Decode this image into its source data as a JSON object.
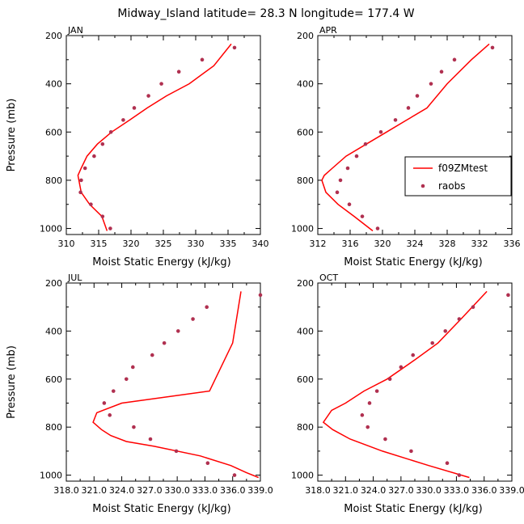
{
  "figure": {
    "title": "Midway_Island   latitude= 28.3 N longitude= 177.4 W"
  },
  "colors": {
    "model": "#ff0000",
    "obs": "#b03050",
    "axis": "#000000"
  },
  "chart_data": [
    {
      "type": "line",
      "panel": "JAN",
      "title": "JAN",
      "xlabel": "Moist Static Energy (kJ/kg)",
      "ylabel": "Pressure (mb)",
      "xlim": [
        310,
        340
      ],
      "ylim": [
        1025,
        200
      ],
      "xticks": [
        310,
        315,
        320,
        325,
        330,
        335,
        340
      ],
      "xtick_labels": [
        "310",
        "315",
        "320",
        "325",
        "330",
        "335",
        "340"
      ],
      "yticks": [
        200,
        400,
        600,
        800,
        1000
      ],
      "ytick_labels": [
        "200",
        "400",
        "600",
        "800",
        "1000"
      ],
      "series": [
        {
          "name": "f09ZMtest",
          "kind": "line",
          "x": [
            316.3,
            315.5,
            313.6,
            312.3,
            311.8,
            312.3,
            313.2,
            314.8,
            317,
            319.8,
            322.5,
            325.5,
            329,
            332.8,
            335.5
          ],
          "y": [
            1010,
            950,
            900,
            850,
            780,
            750,
            700,
            650,
            600,
            550,
            500,
            450,
            400,
            325,
            235
          ]
        },
        {
          "name": "raobs",
          "kind": "scatter",
          "x": [
            316.8,
            315.6,
            313.8,
            312.2,
            312.3,
            312.9,
            314.3,
            315.6,
            316.9,
            318.8,
            320.5,
            322.7,
            324.7,
            327.4,
            331,
            336
          ],
          "y": [
            1000,
            950,
            900,
            850,
            800,
            750,
            700,
            650,
            600,
            550,
            500,
            450,
            400,
            350,
            300,
            250
          ]
        }
      ]
    },
    {
      "type": "line",
      "panel": "APR",
      "title": "APR",
      "xlabel": "Moist Static Energy (kJ/kg)",
      "ylabel": "",
      "xlim": [
        312,
        336
      ],
      "ylim": [
        1025,
        200
      ],
      "xticks": [
        312,
        316,
        320,
        324,
        328,
        332,
        336
      ],
      "xtick_labels": [
        "312",
        "316",
        "320",
        "324",
        "328",
        "332",
        "336"
      ],
      "yticks": [
        200,
        400,
        600,
        800,
        1000
      ],
      "ytick_labels": [
        "200",
        "400",
        "600",
        "800",
        "1000"
      ],
      "legend": {
        "position": "right-middle",
        "entries": [
          "f09ZMtest",
          "raobs"
        ]
      },
      "series": [
        {
          "name": "f09ZMtest",
          "kind": "line",
          "x": [
            318.8,
            316.5,
            314.5,
            313,
            312.5,
            312.8,
            313.8,
            315.5,
            318,
            320.5,
            323,
            325.5,
            328,
            331,
            333.2
          ],
          "y": [
            1010,
            950,
            900,
            850,
            800,
            780,
            750,
            700,
            650,
            600,
            550,
            500,
            400,
            300,
            235
          ]
        },
        {
          "name": "raobs",
          "kind": "scatter",
          "x": [
            319.4,
            317.5,
            315.9,
            314.4,
            314.8,
            315.7,
            316.8,
            317.9,
            319.8,
            321.6,
            323.2,
            324.3,
            326,
            327.3,
            328.9,
            333.6
          ],
          "y": [
            1000,
            950,
            900,
            850,
            800,
            750,
            700,
            650,
            600,
            550,
            500,
            450,
            400,
            350,
            300,
            250
          ]
        }
      ]
    },
    {
      "type": "line",
      "panel": "JUL",
      "title": "JUL",
      "xlabel": "Moist Static Energy (kJ/kg)",
      "ylabel": "Pressure (mb)",
      "xlim": [
        318,
        339
      ],
      "ylim": [
        1025,
        200
      ],
      "xticks": [
        318,
        321,
        324,
        327,
        330,
        333,
        336,
        339
      ],
      "xtick_labels": [
        "318.0",
        "321.0",
        "324.0",
        "327.0",
        "330.0",
        "333.0",
        "336.0",
        "339.0"
      ],
      "yticks": [
        200,
        400,
        600,
        800,
        1000
      ],
      "ytick_labels": [
        "200",
        "400",
        "600",
        "800",
        "1000"
      ],
      "series": [
        {
          "name": "f09ZMtest",
          "kind": "line",
          "x": [
            338.8,
            337.5,
            335.8,
            332.5,
            327.5,
            324.5,
            322.8,
            321.8,
            320.9,
            321.3,
            324,
            333.5,
            336,
            336.9
          ],
          "y": [
            1010,
            990,
            960,
            920,
            880,
            860,
            835,
            810,
            780,
            740,
            700,
            650,
            450,
            235
          ]
        },
        {
          "name": "raobs",
          "kind": "scatter",
          "x": [
            336.2,
            333.3,
            329.9,
            327.1,
            325.3,
            322.7,
            322.1,
            323.1,
            324.5,
            325.2,
            327.3,
            328.6,
            330.1,
            331.7,
            333.2,
            339
          ],
          "y": [
            1000,
            950,
            900,
            850,
            800,
            750,
            700,
            650,
            600,
            550,
            500,
            450,
            400,
            350,
            300,
            250
          ]
        }
      ]
    },
    {
      "type": "line",
      "panel": "OCT",
      "title": "OCT",
      "xlabel": "Moist Static Energy (kJ/kg)",
      "ylabel": "",
      "xlim": [
        318,
        339
      ],
      "ylim": [
        1025,
        200
      ],
      "xticks": [
        318,
        321,
        324,
        327,
        330,
        333,
        336,
        339
      ],
      "xtick_labels": [
        "318.0",
        "321.0",
        "324.0",
        "327.0",
        "330.0",
        "333.0",
        "336.0",
        "339.0"
      ],
      "yticks": [
        200,
        400,
        600,
        800,
        1000
      ],
      "ytick_labels": [
        "200",
        "400",
        "600",
        "800",
        "1000"
      ],
      "series": [
        {
          "name": "f09ZMtest",
          "kind": "line",
          "x": [
            334.4,
            330,
            325,
            321.5,
            319.6,
            318.6,
            319.5,
            321,
            323,
            325.5,
            328.5,
            331,
            333.5,
            336.3
          ],
          "y": [
            1010,
            960,
            900,
            850,
            810,
            780,
            730,
            700,
            650,
            600,
            520,
            450,
            350,
            235
          ]
        },
        {
          "name": "raobs",
          "kind": "scatter",
          "x": [
            333.3,
            332,
            328.1,
            325.3,
            323.4,
            322.8,
            323.6,
            324.4,
            325.8,
            327,
            328.3,
            330.4,
            331.8,
            333.3,
            334.8,
            338.6
          ],
          "y": [
            1000,
            950,
            900,
            850,
            800,
            750,
            700,
            650,
            600,
            550,
            500,
            450,
            400,
            350,
            300,
            250
          ]
        }
      ]
    }
  ]
}
